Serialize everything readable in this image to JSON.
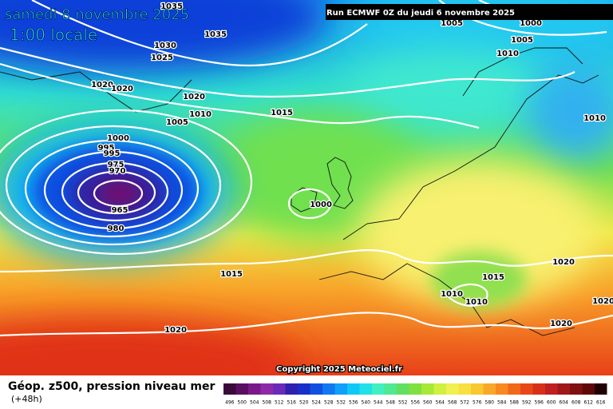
{
  "header": {
    "date": "samedi 8 novembre 2025",
    "time": "1:00 locale",
    "run": "Run ECMWF 0Z du jeudi 6 novembre 2025"
  },
  "copyright": "Copyright 2025 Meteociel.fr",
  "footer": {
    "title": "Géop. z500, pression niveau mer",
    "lead": "(+48h)"
  },
  "isobar_labels": [
    "1035",
    "1035",
    "1030",
    "1025",
    "1020",
    "1020",
    "1020",
    "1010",
    "1015",
    "1005",
    "1000",
    "995",
    "995",
    "975",
    "970",
    "965",
    "980",
    "1000",
    "1015",
    "1020",
    "1005",
    "1000",
    "1005",
    "1010",
    "1010",
    "1020",
    "1015",
    "1010",
    "1010",
    "1020",
    "1020"
  ],
  "legend": {
    "labels": [
      "496",
      "500",
      "504",
      "508",
      "512",
      "516",
      "520",
      "524",
      "528",
      "532",
      "536",
      "540",
      "544",
      "548",
      "552",
      "556",
      "560",
      "564",
      "568",
      "572",
      "576",
      "580",
      "584",
      "588",
      "592",
      "596",
      "600",
      "604",
      "608",
      "612",
      "616"
    ],
    "colors": [
      "#3a0a3a",
      "#5a1060",
      "#7a1a88",
      "#8e2aa8",
      "#6a2ab8",
      "#3020b0",
      "#1830c8",
      "#1050e0",
      "#1078f0",
      "#10a0f8",
      "#10c8f8",
      "#20e0e8",
      "#40f0c0",
      "#50e890",
      "#60e060",
      "#80e040",
      "#a8e838",
      "#d0f040",
      "#f0f050",
      "#f8e040",
      "#f8c830",
      "#f8a828",
      "#f88820",
      "#f06818",
      "#e84818",
      "#d83018",
      "#c02020",
      "#a01818",
      "#801010",
      "#600808",
      "#200000"
    ]
  }
}
